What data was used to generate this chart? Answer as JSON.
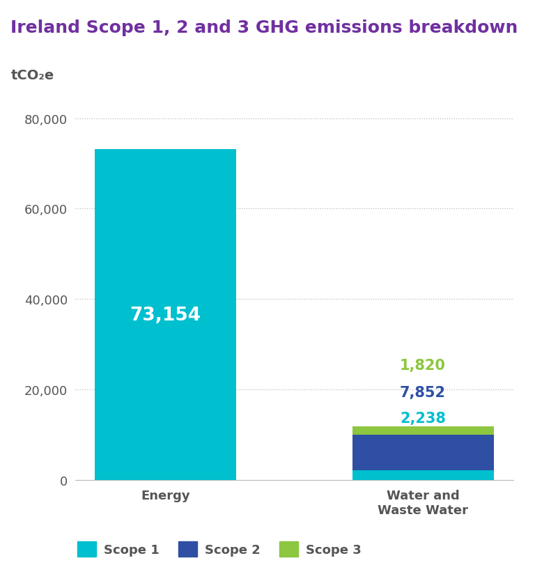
{
  "title": "Ireland Scope 1, 2 and 3 GHG emissions breakdown",
  "title_color": "#7030A0",
  "ylabel_text": "tCO₂e",
  "ylabel_color": "#555555",
  "categories": [
    "Energy",
    "Water and\nWaste Water"
  ],
  "scope1_values": [
    73154,
    2238
  ],
  "scope2_values": [
    0,
    7852
  ],
  "scope3_values": [
    0,
    1820
  ],
  "scope1_color": "#00BFCF",
  "scope2_color": "#2E4FA3",
  "scope3_color": "#8DC63F",
  "label_color_scope1_ww": "#00BFCF",
  "label_color_scope2_ww": "#2E4FA3",
  "label_color_scope3_ww": "#8DC63F",
  "label_color_energy": "#ffffff",
  "ylim": [
    0,
    85000
  ],
  "yticks": [
    0,
    20000,
    40000,
    60000,
    80000
  ],
  "tick_label_color": "#555555",
  "axis_label_color": "#555555",
  "grid_color": "#bbbbbb",
  "background_color": "#ffffff",
  "legend_labels": [
    "Scope 1",
    "Scope 2",
    "Scope 3"
  ],
  "figsize": [
    7.68,
    8.12
  ],
  "dpi": 100,
  "bar_width": 0.55
}
